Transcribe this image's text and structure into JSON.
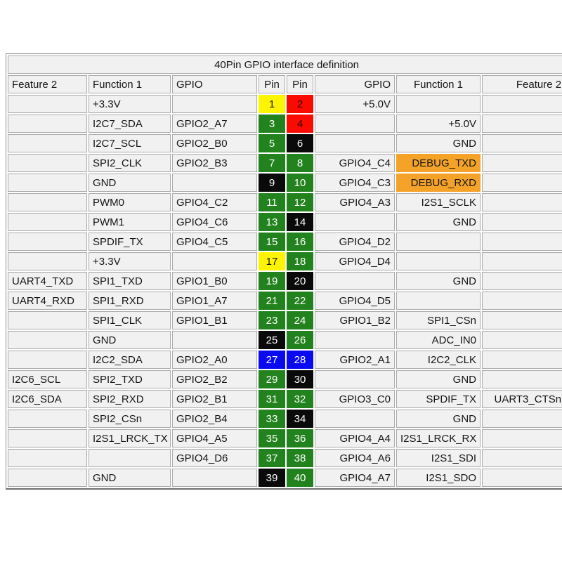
{
  "title": "40Pin GPIO interface definition",
  "headers": {
    "feature2_left": "Feature 2",
    "function1_left": "Function 1",
    "gpio_left": "GPIO",
    "pin_left": "Pin",
    "pin_right": "Pin",
    "gpio_right": "GPIO",
    "function1_right": "Function 1",
    "feature2_right": "Feature 2"
  },
  "pin_colors": {
    "yellow": {
      "bg": "#fdf400",
      "text": "#1a1a00"
    },
    "red": {
      "bg": "#fb0a00",
      "text": "#2b0000"
    },
    "green": {
      "bg": "#22821d",
      "text": "#ffffff"
    },
    "black": {
      "bg": "#0a0a0a",
      "text": "#ffffff"
    },
    "blue": {
      "bg": "#0909f2",
      "text": "#ffffff"
    }
  },
  "highlight_colors": {
    "orange": "#f4a328"
  },
  "rows": [
    {
      "feature2_left": "",
      "function1_left": "+3.3V",
      "gpio_left": "",
      "pin_left": "1",
      "pin_left_color": "yellow",
      "pin_right": "2",
      "pin_right_color": "red",
      "gpio_right": "+5.0V",
      "function1_right": "",
      "function1_right_bg": "",
      "feature2_right": ""
    },
    {
      "feature2_left": "",
      "function1_left": "I2C7_SDA",
      "gpio_left": "GPIO2_A7",
      "pin_left": "3",
      "pin_left_color": "green",
      "pin_right": "4",
      "pin_right_color": "red",
      "gpio_right": "",
      "function1_right": "+5.0V",
      "function1_right_bg": "",
      "feature2_right": ""
    },
    {
      "feature2_left": "",
      "function1_left": "I2C7_SCL",
      "gpio_left": "GPIO2_B0",
      "pin_left": "5",
      "pin_left_color": "green",
      "pin_right": "6",
      "pin_right_color": "black",
      "gpio_right": "",
      "function1_right": "GND",
      "function1_right_bg": "",
      "feature2_right": ""
    },
    {
      "feature2_left": "",
      "function1_left": "SPI2_CLK",
      "gpio_left": "GPIO2_B3",
      "pin_left": "7",
      "pin_left_color": "green",
      "pin_right": "8",
      "pin_right_color": "green",
      "gpio_right": "GPIO4_C4",
      "function1_right": "DEBUG_TXD",
      "function1_right_bg": "orange",
      "feature2_right": ""
    },
    {
      "feature2_left": "",
      "function1_left": "GND",
      "gpio_left": "",
      "pin_left": "9",
      "pin_left_color": "black",
      "pin_right": "10",
      "pin_right_color": "green",
      "gpio_right": "GPIO4_C3",
      "function1_right": "DEBUG_RXD",
      "function1_right_bg": "orange",
      "feature2_right": ""
    },
    {
      "feature2_left": "",
      "function1_left": "PWM0",
      "gpio_left": "GPIO4_C2",
      "pin_left": "11",
      "pin_left_color": "green",
      "pin_right": "12",
      "pin_right_color": "green",
      "gpio_right": "GPIO4_A3",
      "function1_right": "I2S1_SCLK",
      "function1_right_bg": "",
      "feature2_right": ""
    },
    {
      "feature2_left": "",
      "function1_left": "PWM1",
      "gpio_left": "GPIO4_C6",
      "pin_left": "13",
      "pin_left_color": "green",
      "pin_right": "14",
      "pin_right_color": "black",
      "gpio_right": "",
      "function1_right": "GND",
      "function1_right_bg": "",
      "feature2_right": ""
    },
    {
      "feature2_left": "",
      "function1_left": "SPDIF_TX",
      "gpio_left": "GPIO4_C5",
      "pin_left": "15",
      "pin_left_color": "green",
      "pin_right": "16",
      "pin_right_color": "green",
      "gpio_right": "GPIO4_D2",
      "function1_right": "",
      "function1_right_bg": "",
      "feature2_right": ""
    },
    {
      "feature2_left": "",
      "function1_left": "+3.3V",
      "gpio_left": "",
      "pin_left": "17",
      "pin_left_color": "yellow",
      "pin_right": "18",
      "pin_right_color": "green",
      "gpio_right": "GPIO4_D4",
      "function1_right": "",
      "function1_right_bg": "",
      "feature2_right": ""
    },
    {
      "feature2_left": "UART4_TXD",
      "function1_left": "SPI1_TXD",
      "gpio_left": "GPIO1_B0",
      "pin_left": "19",
      "pin_left_color": "green",
      "pin_right": "20",
      "pin_right_color": "black",
      "gpio_right": "",
      "function1_right": "GND",
      "function1_right_bg": "",
      "feature2_right": ""
    },
    {
      "feature2_left": "UART4_RXD",
      "function1_left": "SPI1_RXD",
      "gpio_left": "GPIO1_A7",
      "pin_left": "21",
      "pin_left_color": "green",
      "pin_right": "22",
      "pin_right_color": "green",
      "gpio_right": "GPIO4_D5",
      "function1_right": "",
      "function1_right_bg": "",
      "feature2_right": ""
    },
    {
      "feature2_left": "",
      "function1_left": "SPI1_CLK",
      "gpio_left": "GPIO1_B1",
      "pin_left": "23",
      "pin_left_color": "green",
      "pin_right": "24",
      "pin_right_color": "green",
      "gpio_right": "GPIO1_B2",
      "function1_right": "SPI1_CSn",
      "function1_right_bg": "",
      "feature2_right": ""
    },
    {
      "feature2_left": "",
      "function1_left": "GND",
      "gpio_left": "",
      "pin_left": "25",
      "pin_left_color": "black",
      "pin_right": "26",
      "pin_right_color": "green",
      "gpio_right": "",
      "function1_right": "ADC_IN0",
      "function1_right_bg": "",
      "feature2_right": ""
    },
    {
      "feature2_left": "",
      "function1_left": "I2C2_SDA",
      "gpio_left": "GPIO2_A0",
      "pin_left": "27",
      "pin_left_color": "blue",
      "pin_right": "28",
      "pin_right_color": "blue",
      "gpio_right": "GPIO2_A1",
      "function1_right": "I2C2_CLK",
      "function1_right_bg": "",
      "feature2_right": ""
    },
    {
      "feature2_left": "I2C6_SCL",
      "function1_left": "SPI2_TXD",
      "gpio_left": "GPIO2_B2",
      "pin_left": "29",
      "pin_left_color": "green",
      "pin_right": "30",
      "pin_right_color": "black",
      "gpio_right": "",
      "function1_right": "GND",
      "function1_right_bg": "",
      "feature2_right": ""
    },
    {
      "feature2_left": "I2C6_SDA",
      "function1_left": "SPI2_RXD",
      "gpio_left": "GPIO2_B1",
      "pin_left": "31",
      "pin_left_color": "green",
      "pin_right": "32",
      "pin_right_color": "green",
      "gpio_right": "GPIO3_C0",
      "function1_right": "SPDIF_TX",
      "function1_right_bg": "",
      "feature2_right": "UART3_CTSn"
    },
    {
      "feature2_left": "",
      "function1_left": "SPI2_CSn",
      "gpio_left": "GPIO2_B4",
      "pin_left": "33",
      "pin_left_color": "green",
      "pin_right": "34",
      "pin_right_color": "black",
      "gpio_right": "",
      "function1_right": "GND",
      "function1_right_bg": "",
      "feature2_right": ""
    },
    {
      "feature2_left": "",
      "function1_left": "I2S1_LRCK_TX",
      "gpio_left": "GPIO4_A5",
      "pin_left": "35",
      "pin_left_color": "green",
      "pin_right": "36",
      "pin_right_color": "green",
      "gpio_right": "GPIO4_A4",
      "function1_right": "I2S1_LRCK_RX",
      "function1_right_bg": "",
      "feature2_right": ""
    },
    {
      "feature2_left": "",
      "function1_left": "",
      "gpio_left": "GPIO4_D6",
      "pin_left": "37",
      "pin_left_color": "green",
      "pin_right": "38",
      "pin_right_color": "green",
      "gpio_right": "GPIO4_A6",
      "function1_right": "I2S1_SDI",
      "function1_right_bg": "",
      "feature2_right": ""
    },
    {
      "feature2_left": "",
      "function1_left": "GND",
      "gpio_left": "",
      "pin_left": "39",
      "pin_left_color": "black",
      "pin_right": "40",
      "pin_right_color": "green",
      "gpio_right": "GPIO4_A7",
      "function1_right": "I2S1_SDO",
      "function1_right_bg": "",
      "feature2_right": ""
    }
  ]
}
